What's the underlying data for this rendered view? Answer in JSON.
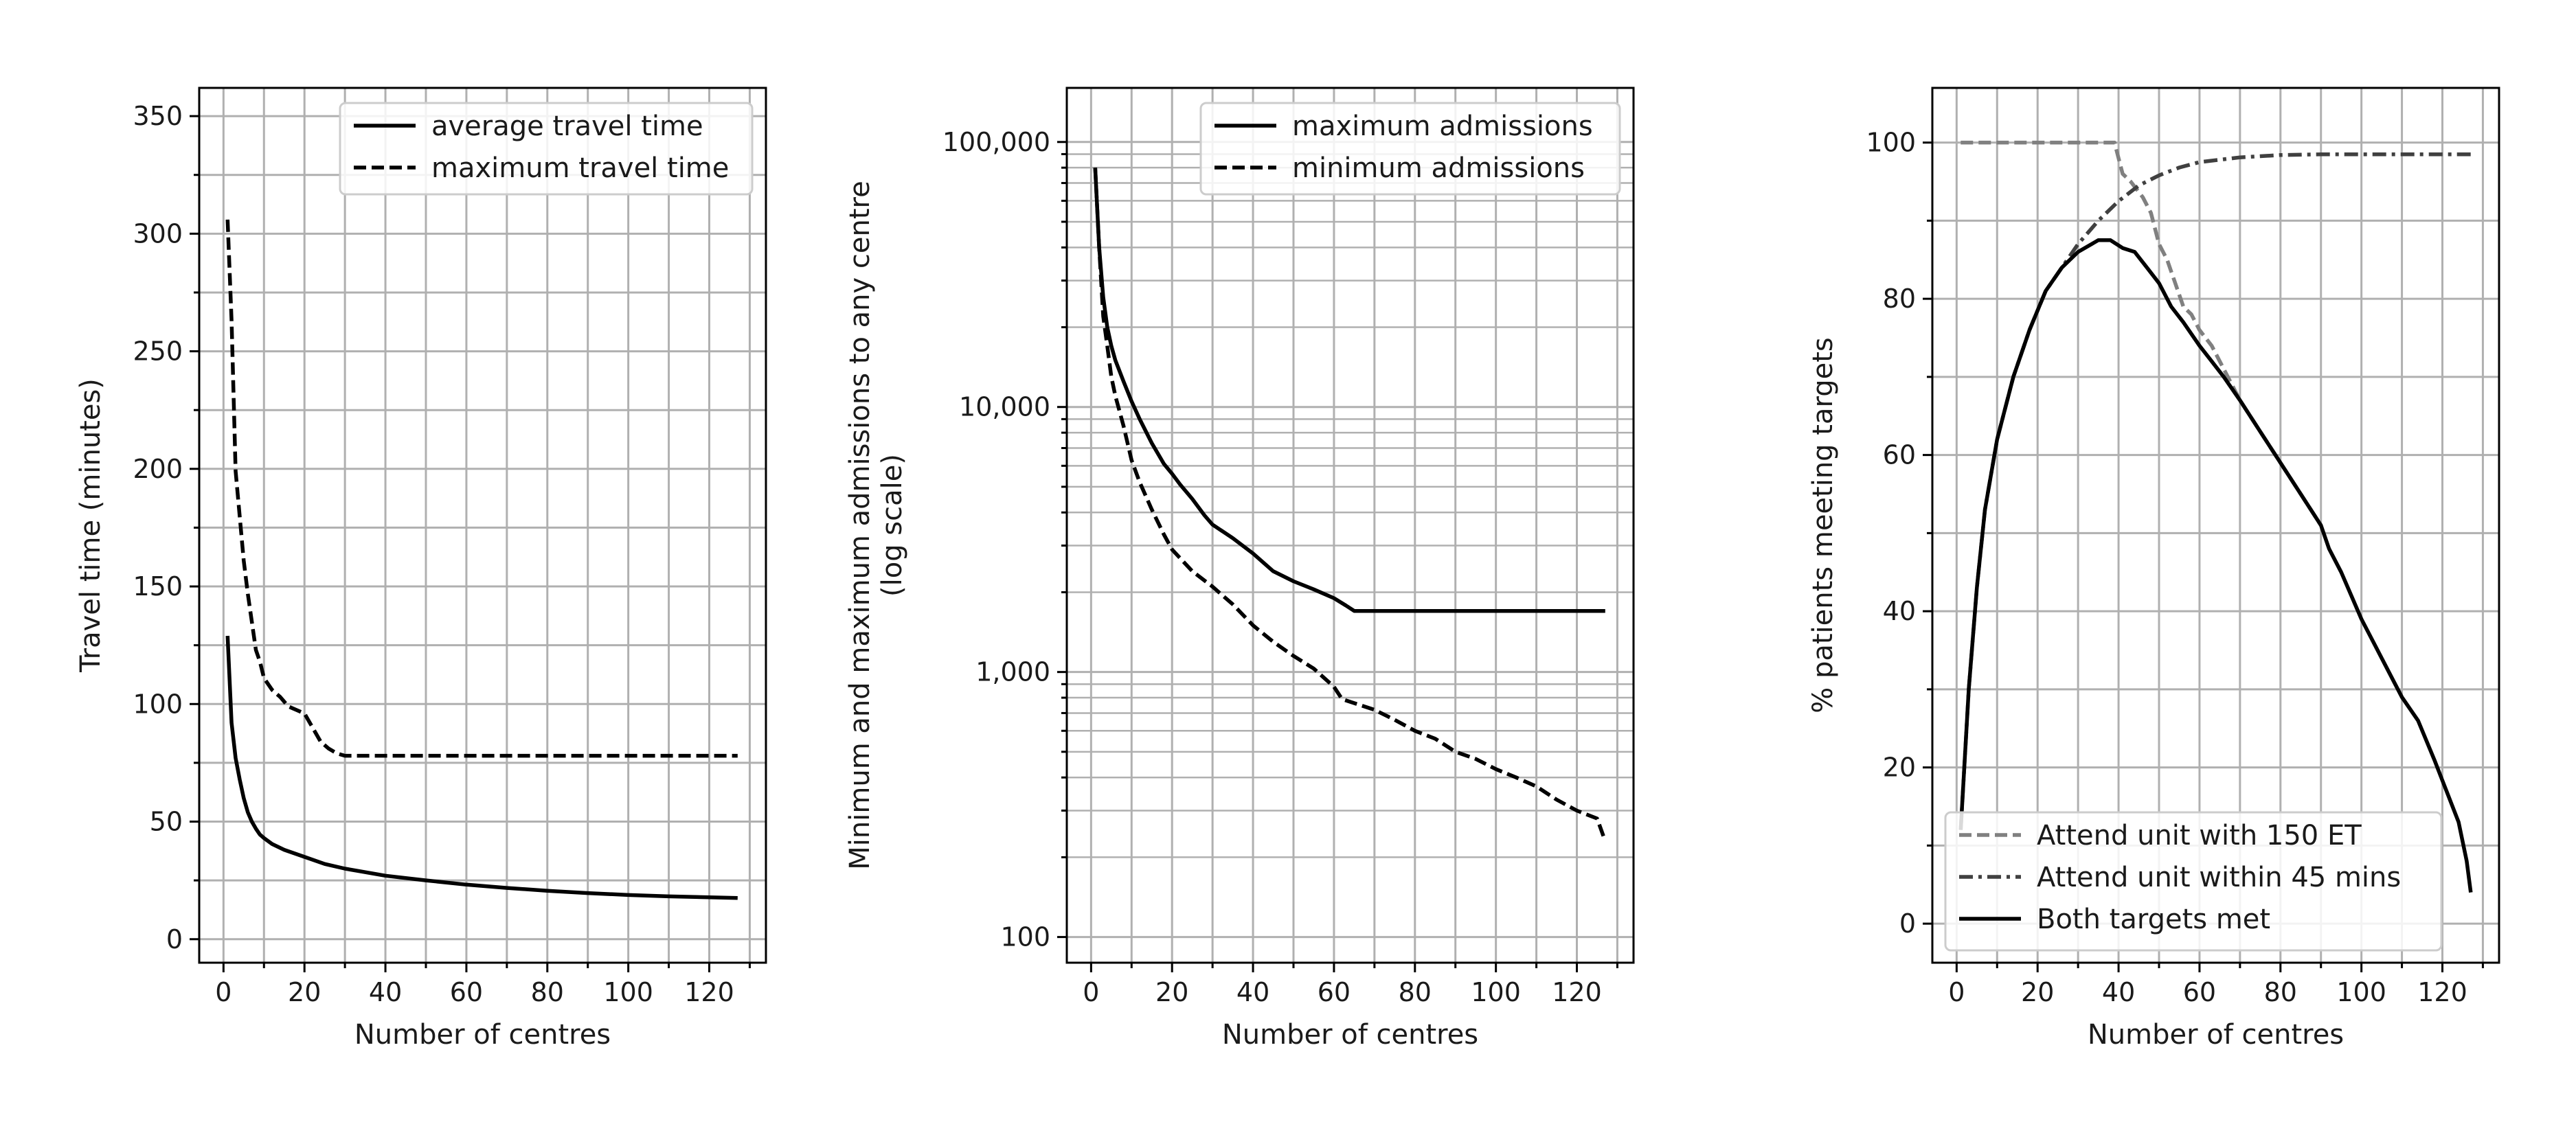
{
  "chart_data": [
    {
      "type": "line",
      "xlabel": "Number of centres",
      "ylabel": "Travel time (minutes)",
      "xlim": [
        -6,
        134
      ],
      "ylim": [
        -10,
        362
      ],
      "xticks": [
        0,
        20,
        40,
        60,
        80,
        100,
        120
      ],
      "yticks": [
        0,
        50,
        100,
        150,
        200,
        250,
        300,
        350
      ],
      "ytick_labels": [
        "0",
        "50",
        "100",
        "150",
        "200",
        "250",
        "300",
        "350"
      ],
      "grid": true,
      "legend_position": "top-right",
      "series": [
        {
          "name": "average travel time",
          "style": "solid",
          "color": "#000000",
          "points": [
            [
              1,
              129
            ],
            [
              2,
              92
            ],
            [
              3,
              77
            ],
            [
              4,
              68
            ],
            [
              5,
              60
            ],
            [
              6,
              54
            ],
            [
              7,
              50
            ],
            [
              8,
              47
            ],
            [
              9,
              44.5
            ],
            [
              10,
              43
            ],
            [
              12,
              40.5
            ],
            [
              15,
              38
            ],
            [
              20,
              35
            ],
            [
              25,
              32
            ],
            [
              30,
              30
            ],
            [
              40,
              27
            ],
            [
              50,
              25
            ],
            [
              60,
              23.2
            ],
            [
              70,
              21.8
            ],
            [
              80,
              20.6
            ],
            [
              90,
              19.6
            ],
            [
              100,
              18.8
            ],
            [
              110,
              18.2
            ],
            [
              120,
              17.8
            ],
            [
              127,
              17.5
            ]
          ]
        },
        {
          "name": "maximum travel time",
          "style": "dashed",
          "color": "#000000",
          "points": [
            [
              1,
              306
            ],
            [
              2,
              263
            ],
            [
              3,
              199
            ],
            [
              4,
              180
            ],
            [
              5,
              161
            ],
            [
              6,
              147
            ],
            [
              7,
              135
            ],
            [
              8,
              123
            ],
            [
              9,
              118
            ],
            [
              10,
              111
            ],
            [
              12,
              106
            ],
            [
              14,
              103
            ],
            [
              16,
              99
            ],
            [
              20,
              96
            ],
            [
              22,
              90
            ],
            [
              24,
              84
            ],
            [
              26,
              81
            ],
            [
              28,
              79
            ],
            [
              30,
              78
            ],
            [
              50,
              78
            ],
            [
              80,
              78
            ],
            [
              100,
              78
            ],
            [
              127,
              78
            ]
          ]
        }
      ]
    },
    {
      "type": "line",
      "xlabel": "Number of centres",
      "ylabel": "Minimum and maximum admissions to any centre",
      "ylabel2": "(log scale)",
      "log_scale_y": true,
      "xlim": [
        -6,
        134
      ],
      "ylim": [
        80,
        160000
      ],
      "xticks": [
        0,
        20,
        40,
        60,
        80,
        100,
        120
      ],
      "yticks": [
        100,
        1000,
        10000,
        100000
      ],
      "ytick_labels": [
        "100",
        "1,000",
        "10,000",
        "100,000"
      ],
      "grid": true,
      "legend_position": "top-right",
      "series": [
        {
          "name": "maximum admissions",
          "style": "solid",
          "color": "#000000",
          "points": [
            [
              1,
              80000
            ],
            [
              2,
              40000
            ],
            [
              3,
              26000
            ],
            [
              4,
              20000
            ],
            [
              5,
              17000
            ],
            [
              6,
              15000
            ],
            [
              8,
              12500
            ],
            [
              10,
              10500
            ],
            [
              12,
              9000
            ],
            [
              15,
              7300
            ],
            [
              18,
              6100
            ],
            [
              20,
              5600
            ],
            [
              22,
              5100
            ],
            [
              25,
              4500
            ],
            [
              28,
              3900
            ],
            [
              30,
              3600
            ],
            [
              35,
              3200
            ],
            [
              40,
              2800
            ],
            [
              45,
              2400
            ],
            [
              50,
              2200
            ],
            [
              55,
              2050
            ],
            [
              60,
              1900
            ],
            [
              63,
              1780
            ],
            [
              65,
              1700
            ],
            [
              80,
              1700
            ],
            [
              100,
              1700
            ],
            [
              127,
              1700
            ]
          ]
        },
        {
          "name": "minimum admissions",
          "style": "dashed",
          "color": "#000000",
          "points": [
            [
              1,
              80000
            ],
            [
              2,
              40000
            ],
            [
              3,
              22000
            ],
            [
              4,
              17000
            ],
            [
              5,
              13000
            ],
            [
              6,
              11000
            ],
            [
              8,
              8500
            ],
            [
              10,
              6300
            ],
            [
              12,
              5200
            ],
            [
              15,
              4100
            ],
            [
              18,
              3300
            ],
            [
              20,
              2900
            ],
            [
              25,
              2400
            ],
            [
              30,
              2100
            ],
            [
              35,
              1800
            ],
            [
              40,
              1500
            ],
            [
              45,
              1300
            ],
            [
              50,
              1150
            ],
            [
              55,
              1030
            ],
            [
              60,
              880
            ],
            [
              62,
              790
            ],
            [
              70,
              720
            ],
            [
              75,
              660
            ],
            [
              80,
              600
            ],
            [
              85,
              560
            ],
            [
              90,
              500
            ],
            [
              95,
              470
            ],
            [
              100,
              430
            ],
            [
              105,
              400
            ],
            [
              110,
              370
            ],
            [
              115,
              330
            ],
            [
              120,
              300
            ],
            [
              125,
              280
            ],
            [
              127,
              230
            ]
          ]
        }
      ]
    },
    {
      "type": "line",
      "xlabel": "Number of centres",
      "ylabel": "% patients meeting targets",
      "xlim": [
        -6,
        134
      ],
      "ylim": [
        -5,
        107
      ],
      "xticks": [
        0,
        20,
        40,
        60,
        80,
        100,
        120
      ],
      "yticks": [
        0,
        20,
        40,
        60,
        80,
        100
      ],
      "ytick_labels": [
        "0",
        "20",
        "40",
        "60",
        "80",
        "100"
      ],
      "grid": true,
      "legend_position": "bottom-left",
      "series": [
        {
          "name": "Attend unit with 150 ET",
          "style": "dashed",
          "color": "#808080",
          "points": [
            [
              1,
              100
            ],
            [
              20,
              100
            ],
            [
              39,
              100
            ],
            [
              40,
              98
            ],
            [
              41,
              96
            ],
            [
              43,
              95
            ],
            [
              46,
              93
            ],
            [
              48,
              91
            ],
            [
              50,
              87
            ],
            [
              52,
              85
            ],
            [
              54,
              82
            ],
            [
              56,
              79
            ],
            [
              58,
              78
            ],
            [
              60,
              76
            ],
            [
              63,
              74
            ],
            [
              66,
              71
            ],
            [
              70,
              67
            ],
            [
              75,
              63
            ],
            [
              80,
              59
            ],
            [
              85,
              55
            ],
            [
              90,
              51
            ]
          ]
        },
        {
          "name": "Attend  unit within 45 mins",
          "style": "dashdot",
          "color": "#404040",
          "points": [
            [
              1,
              12
            ],
            [
              3,
              30
            ],
            [
              5,
              43
            ],
            [
              7,
              53
            ],
            [
              10,
              62
            ],
            [
              14,
              70
            ],
            [
              18,
              76
            ],
            [
              22,
              81
            ],
            [
              26,
              84
            ],
            [
              30,
              87
            ],
            [
              35,
              90
            ],
            [
              40,
              92.5
            ],
            [
              45,
              94.5
            ],
            [
              50,
              95.8
            ],
            [
              55,
              96.8
            ],
            [
              60,
              97.5
            ],
            [
              70,
              98.1
            ],
            [
              80,
              98.4
            ],
            [
              90,
              98.5
            ],
            [
              127,
              98.5
            ]
          ]
        },
        {
          "name": "Both targets met",
          "style": "solid",
          "color": "#000000",
          "points": [
            [
              1,
              12
            ],
            [
              3,
              30
            ],
            [
              5,
              43
            ],
            [
              7,
              53
            ],
            [
              10,
              62
            ],
            [
              14,
              70
            ],
            [
              18,
              76
            ],
            [
              22,
              81
            ],
            [
              26,
              84
            ],
            [
              30,
              86
            ],
            [
              35,
              87.5
            ],
            [
              38,
              87.5
            ],
            [
              41,
              86.5
            ],
            [
              44,
              86
            ],
            [
              47,
              84
            ],
            [
              50,
              82
            ],
            [
              53,
              79
            ],
            [
              56,
              77
            ],
            [
              60,
              74
            ],
            [
              63,
              72
            ],
            [
              66,
              70
            ],
            [
              70,
              67
            ],
            [
              75,
              63
            ],
            [
              80,
              59
            ],
            [
              85,
              55
            ],
            [
              90,
              51
            ],
            [
              92,
              48
            ],
            [
              95,
              45
            ],
            [
              100,
              39
            ],
            [
              103,
              36
            ],
            [
              106,
              33
            ],
            [
              110,
              29
            ],
            [
              114,
              26
            ],
            [
              118,
              21
            ],
            [
              121,
              17
            ],
            [
              124,
              13
            ],
            [
              126,
              8
            ],
            [
              127,
              4
            ]
          ]
        }
      ]
    }
  ]
}
